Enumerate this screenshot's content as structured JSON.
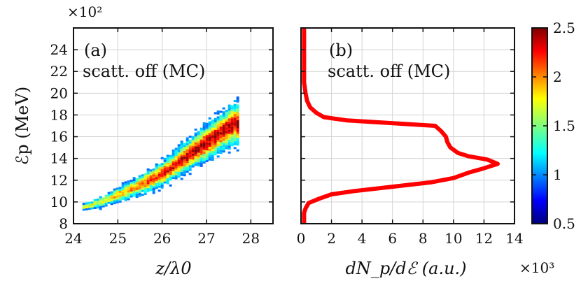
{
  "chart_data": [
    {
      "type": "heatmap",
      "panel_label": "(a)",
      "annotation": "scatt. off (MC)",
      "xlabel": "z/λ0",
      "ylabel": "ℰp (MeV)",
      "y_multiplier": "×10²",
      "xlim": [
        24,
        28.5
      ],
      "ylim": [
        8,
        26
      ],
      "xticks": [
        24,
        25,
        26,
        27,
        28
      ],
      "yticks": [
        8,
        10,
        12,
        14,
        16,
        18,
        20,
        22,
        24
      ],
      "grid": true,
      "colormap": "jet",
      "ridge": [
        {
          "x": 24.2,
          "y": 9.6
        },
        {
          "x": 24.6,
          "y": 10.1
        },
        {
          "x": 25.0,
          "y": 10.8
        },
        {
          "x": 25.4,
          "y": 11.5
        },
        {
          "x": 25.8,
          "y": 12.3
        },
        {
          "x": 26.1,
          "y": 13.0
        },
        {
          "x": 26.4,
          "y": 13.9
        },
        {
          "x": 26.7,
          "y": 14.8
        },
        {
          "x": 27.0,
          "y": 15.6
        },
        {
          "x": 27.3,
          "y": 16.5
        },
        {
          "x": 27.6,
          "y": 17.3
        }
      ]
    },
    {
      "type": "line",
      "panel_label": "(b)",
      "annotation": "scatt. off (MC)",
      "xlabel": "dN_p/dℰ (a.u.)",
      "x_multiplier": "×10³",
      "xlim": [
        0,
        14
      ],
      "ylim": [
        8,
        26
      ],
      "xticks": [
        0,
        2,
        4,
        6,
        8,
        10,
        12,
        14
      ],
      "yticks": [
        8,
        10,
        12,
        14,
        16,
        18,
        20,
        22,
        24
      ],
      "grid": true,
      "line_color": "#ff0000",
      "series": [
        {
          "points": [
            {
              "x": 0.2,
              "y": 8.0
            },
            {
              "x": 0.2,
              "y": 9.0
            },
            {
              "x": 0.3,
              "y": 9.4
            },
            {
              "x": 0.5,
              "y": 9.9
            },
            {
              "x": 1.2,
              "y": 10.3
            },
            {
              "x": 2.0,
              "y": 10.7
            },
            {
              "x": 3.5,
              "y": 11.0
            },
            {
              "x": 6.0,
              "y": 11.4
            },
            {
              "x": 8.5,
              "y": 11.8
            },
            {
              "x": 10.0,
              "y": 12.2
            },
            {
              "x": 11.0,
              "y": 12.7
            },
            {
              "x": 12.0,
              "y": 13.1
            },
            {
              "x": 12.9,
              "y": 13.5
            },
            {
              "x": 12.2,
              "y": 13.9
            },
            {
              "x": 11.0,
              "y": 14.2
            },
            {
              "x": 10.3,
              "y": 14.5
            },
            {
              "x": 9.8,
              "y": 15.0
            },
            {
              "x": 9.6,
              "y": 15.5
            },
            {
              "x": 9.5,
              "y": 16.0
            },
            {
              "x": 9.2,
              "y": 16.5
            },
            {
              "x": 8.8,
              "y": 17.0
            },
            {
              "x": 6.5,
              "y": 17.2
            },
            {
              "x": 3.0,
              "y": 17.5
            },
            {
              "x": 1.5,
              "y": 17.8
            },
            {
              "x": 1.0,
              "y": 18.2
            },
            {
              "x": 0.6,
              "y": 18.7
            },
            {
              "x": 0.4,
              "y": 19.3
            },
            {
              "x": 0.3,
              "y": 20.0
            },
            {
              "x": 0.2,
              "y": 21.0
            },
            {
              "x": 0.2,
              "y": 26.0
            }
          ]
        }
      ]
    },
    {
      "type": "colorbar",
      "range": [
        0.5,
        2.5
      ],
      "ticks": [
        0.5,
        1,
        1.5,
        2,
        2.5
      ],
      "tick_labels": [
        "0.5",
        "1",
        "1.5",
        "2",
        "2.5"
      ],
      "colormap": "jet"
    }
  ]
}
